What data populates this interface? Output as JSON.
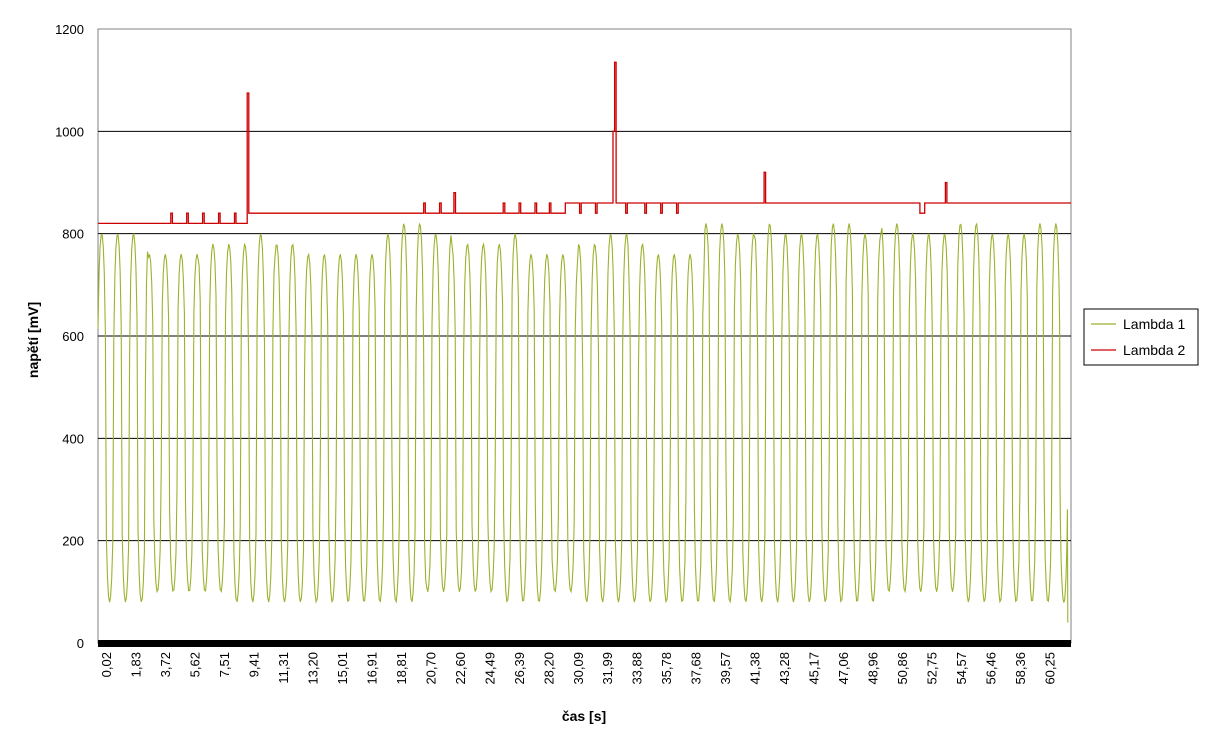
{
  "chart_data": {
    "type": "line",
    "xlabel": "čas [s]",
    "ylabel": "napětí [mV]",
    "ylim": [
      0,
      1200
    ],
    "yticks": [
      0,
      200,
      400,
      600,
      800,
      1000,
      1200
    ],
    "xlim": [
      0.02,
      61.2
    ],
    "x_tick_labels": [
      "0,02",
      "1,83",
      "3,72",
      "5,62",
      "7,51",
      "9,41",
      "11,31",
      "13,20",
      "15,01",
      "16,91",
      "18,81",
      "20,70",
      "22,60",
      "24,49",
      "26,39",
      "28,20",
      "30,09",
      "31,99",
      "33,88",
      "35,78",
      "37,68",
      "39,57",
      "41,38",
      "43,28",
      "45,17",
      "47,06",
      "48,96",
      "50,86",
      "52,75",
      "54,57",
      "56,46",
      "58,36",
      "60,25"
    ],
    "grid": "horizontal",
    "legend_position": "right",
    "colors": {
      "Lambda 1": "#99b32e",
      "Lambda 2": "#cc0000"
    },
    "series": [
      {
        "name": "Lambda 1",
        "kind": "oscillation",
        "x": [
          0.02,
          1.61,
          3.2,
          4.79,
          6.38,
          7.97,
          9.56,
          11.15,
          12.74,
          14.33,
          15.92,
          17.51,
          19.1,
          20.69,
          22.28,
          23.87,
          25.46,
          27.05,
          28.64,
          30.23,
          31.82,
          33.41,
          35.0,
          36.59,
          38.18,
          39.77,
          41.36,
          42.95,
          44.54,
          46.13,
          47.72,
          49.31,
          50.9,
          52.49,
          54.08,
          55.67,
          57.26,
          58.85,
          60.44,
          61.0
        ],
        "peaks": [
          800,
          800,
          760,
          760,
          780,
          780,
          800,
          780,
          760,
          760,
          760,
          800,
          820,
          800,
          780,
          780,
          800,
          760,
          760,
          780,
          800,
          780,
          760,
          760,
          820,
          800,
          820,
          800,
          800,
          820,
          800,
          820,
          800,
          800,
          820,
          800,
          800,
          820,
          820,
          820
        ],
        "troughs": [
          80,
          80,
          100,
          100,
          100,
          80,
          80,
          80,
          80,
          80,
          80,
          80,
          80,
          100,
          100,
          100,
          80,
          80,
          100,
          80,
          80,
          80,
          80,
          80,
          80,
          80,
          80,
          80,
          80,
          80,
          80,
          100,
          100,
          100,
          80,
          80,
          80,
          80,
          80,
          40
        ]
      },
      {
        "name": "Lambda 2",
        "x": [
          0.02,
          4.5,
          4.6,
          4.7,
          5.5,
          5.6,
          5.7,
          6.5,
          6.6,
          6.7,
          7.5,
          7.6,
          7.7,
          8.5,
          8.6,
          8.7,
          9.3,
          9.4,
          9.5,
          9.6,
          20.4,
          20.5,
          20.6,
          21.4,
          21.5,
          21.6,
          22.3,
          22.4,
          22.5,
          25.4,
          25.5,
          25.6,
          26.4,
          26.5,
          26.6,
          27.4,
          27.5,
          27.6,
          28.3,
          28.4,
          28.5,
          29.3,
          29.4,
          29.5,
          30.3,
          30.4,
          30.5,
          31.3,
          31.4,
          31.5,
          32.3,
          32.4,
          32.5,
          32.6,
          33.1,
          33.2,
          33.3,
          34.3,
          34.4,
          34.5,
          35.3,
          35.4,
          35.5,
          36.3,
          36.4,
          36.5,
          41.8,
          41.9,
          42.0,
          51.6,
          51.7,
          52.0,
          53.2,
          53.3,
          53.4,
          61.2
        ],
        "values": [
          820,
          820,
          840,
          820,
          820,
          840,
          820,
          820,
          840,
          820,
          820,
          840,
          820,
          820,
          840,
          820,
          820,
          1075,
          840,
          840,
          840,
          860,
          840,
          840,
          860,
          840,
          840,
          880,
          840,
          840,
          860,
          840,
          840,
          860,
          840,
          840,
          860,
          840,
          840,
          860,
          840,
          840,
          860,
          860,
          840,
          860,
          860,
          840,
          860,
          860,
          860,
          1000,
          1135,
          860,
          860,
          840,
          860,
          860,
          840,
          860,
          860,
          840,
          860,
          860,
          840,
          860,
          860,
          920,
          860,
          860,
          840,
          860,
          860,
          900,
          860,
          860
        ]
      }
    ]
  }
}
